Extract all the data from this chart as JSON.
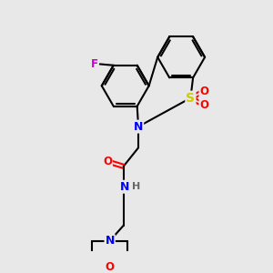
{
  "background_color": "#e8e8e8",
  "bond_color": "#000000",
  "atom_colors": {
    "F": "#cc00cc",
    "N": "#0000ff",
    "S": "#cccc00",
    "O": "#ff0000",
    "H": "#666666",
    "C": "#000000"
  },
  "figsize": [
    3.0,
    3.0
  ],
  "dpi": 100
}
